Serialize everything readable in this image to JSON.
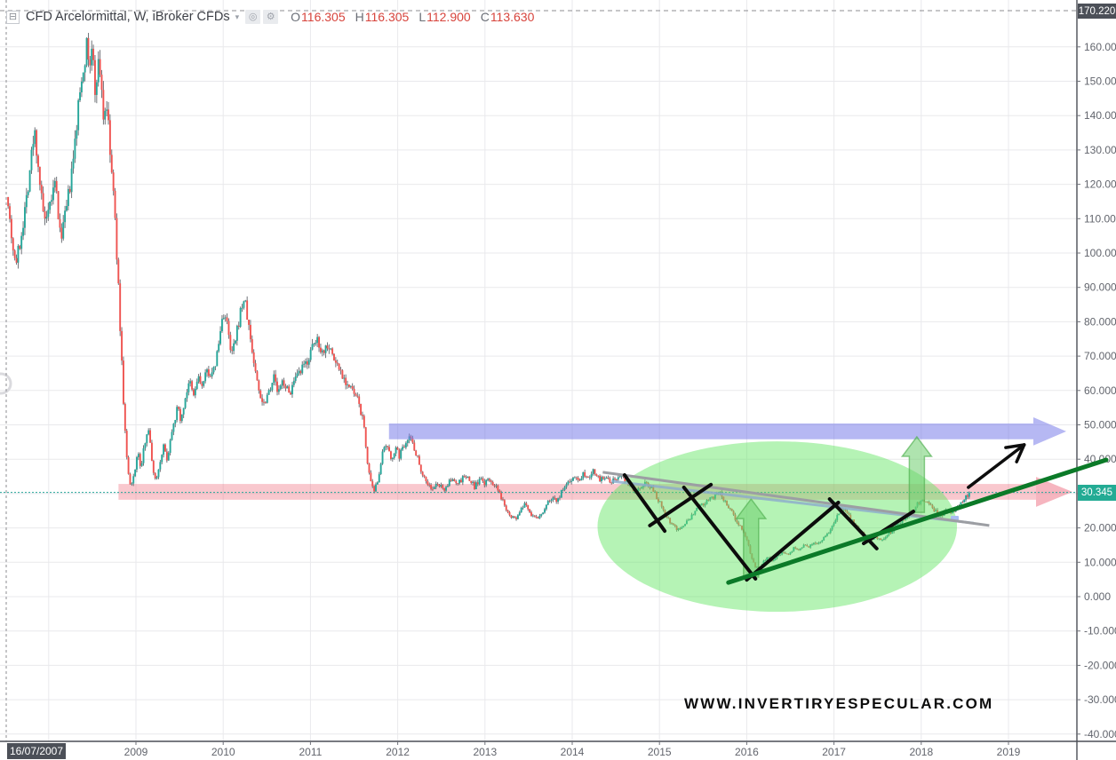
{
  "header": {
    "collapse_glyph": "⊟",
    "symbol_title": "CFD Arcelormittal, W, iBroker CFDs",
    "dropdown_caret": "▾",
    "circle_icon_glyph": "◎",
    "gear_icon_glyph": "⚙",
    "ohlc": {
      "open_label": "O",
      "open": "116.305",
      "high_label": "H",
      "high": "116.305",
      "low_label": "L",
      "low": "112.900",
      "close_label": "C",
      "close": "113.630"
    }
  },
  "crosshair": {
    "price_label": "170.220",
    "date_label": "16/07/2007"
  },
  "price_label": {
    "value": "30.345"
  },
  "watermark_text": "WWW.INVERTIRYESPECULAR.COM",
  "price_axis": {
    "ticks": [
      "160.000",
      "150.000",
      "140.000",
      "130.000",
      "120.000",
      "110.000",
      "100.000",
      "90.000",
      "80.000",
      "70.000",
      "60.000",
      "50.000",
      "40.000",
      "30.000",
      "20.000",
      "10.000",
      "0.000",
      "-10.000",
      "-20.000",
      "-30.000",
      "-40.000"
    ]
  },
  "time_axis": {
    "years": [
      "2009",
      "2010",
      "2011",
      "2012",
      "2013",
      "2014",
      "2015",
      "2016",
      "2017",
      "2018",
      "2019"
    ]
  },
  "colors": {
    "up_candle": "#26a69a",
    "down_candle": "#ef5350",
    "wick": "#61656b",
    "grid": "#e9e9ec",
    "axis_line": "#4b4e56",
    "axis_text": "#62656d",
    "current_price_line": "#26a69a",
    "price_label_bg": "#23ab94",
    "crosshair_label_bg": "#4c5058",
    "crosshair_line": "#8d8d92",
    "support_zone": "rgba(240,110,125,0.38)",
    "support_zone_head": "rgba(238,120,138,0.55)",
    "resistance_arrow": "rgba(122,126,233,0.55)",
    "ellipse": "rgba(100,230,100,0.48)",
    "up_arrow_fill": "rgba(110,205,110,0.55)",
    "up_arrow_stroke": "rgba(80,175,80,0.65)",
    "zigzag": "#0c0c0c",
    "gray_line": "#9c9ea3",
    "bluegray_line": "rgba(140,170,205,0.8)",
    "handle": "#a9bdf2",
    "green_trendline": "#0b7a28",
    "black_arrow": "#0d0d0d"
  },
  "chart_data": {
    "type": "candlestick",
    "symbol": "CFD Arcelormittal",
    "interval": "W",
    "broker": "iBroker CFDs",
    "first_bar": {
      "date": "16/07/2007",
      "open": 116.305,
      "high": 116.305,
      "low": 112.9,
      "close": 113.63
    },
    "current_price": 30.345,
    "y_axis": {
      "min": -40,
      "max": 170.22,
      "tick_step": 10
    },
    "x_axis": {
      "start_year": 2007.54,
      "end_year": 2019.6
    },
    "price_path_anchors": [
      [
        2007.54,
        113
      ],
      [
        2007.58,
        104
      ],
      [
        2007.62,
        97
      ],
      [
        2007.66,
        101
      ],
      [
        2007.7,
        108
      ],
      [
        2007.75,
        117
      ],
      [
        2007.8,
        128
      ],
      [
        2007.84,
        135
      ],
      [
        2007.88,
        126
      ],
      [
        2007.93,
        112
      ],
      [
        2007.98,
        108
      ],
      [
        2008.03,
        116
      ],
      [
        2008.08,
        120
      ],
      [
        2008.13,
        105
      ],
      [
        2008.18,
        109
      ],
      [
        2008.23,
        117
      ],
      [
        2008.28,
        126
      ],
      [
        2008.33,
        140
      ],
      [
        2008.38,
        152
      ],
      [
        2008.43,
        160
      ],
      [
        2008.47,
        155
      ],
      [
        2008.5,
        159
      ],
      [
        2008.53,
        147
      ],
      [
        2008.56,
        155
      ],
      [
        2008.6,
        152
      ],
      [
        2008.63,
        138
      ],
      [
        2008.66,
        145
      ],
      [
        2008.7,
        130
      ],
      [
        2008.74,
        118
      ],
      [
        2008.78,
        100
      ],
      [
        2008.82,
        78
      ],
      [
        2008.86,
        55
      ],
      [
        2008.9,
        38
      ],
      [
        2008.94,
        31
      ],
      [
        2008.98,
        36
      ],
      [
        2009.02,
        42
      ],
      [
        2009.06,
        37
      ],
      [
        2009.1,
        45
      ],
      [
        2009.14,
        50
      ],
      [
        2009.18,
        40
      ],
      [
        2009.22,
        34
      ],
      [
        2009.26,
        37
      ],
      [
        2009.31,
        44
      ],
      [
        2009.36,
        40
      ],
      [
        2009.42,
        50
      ],
      [
        2009.48,
        55
      ],
      [
        2009.52,
        51
      ],
      [
        2009.57,
        59
      ],
      [
        2009.62,
        62
      ],
      [
        2009.66,
        58
      ],
      [
        2009.71,
        64
      ],
      [
        2009.76,
        61
      ],
      [
        2009.82,
        66
      ],
      [
        2009.88,
        64
      ],
      [
        2009.94,
        72
      ],
      [
        2010.0,
        83
      ],
      [
        2010.04,
        80
      ],
      [
        2010.09,
        70
      ],
      [
        2010.14,
        74
      ],
      [
        2010.19,
        82
      ],
      [
        2010.24,
        87
      ],
      [
        2010.29,
        79
      ],
      [
        2010.34,
        70
      ],
      [
        2010.4,
        61
      ],
      [
        2010.46,
        56
      ],
      [
        2010.52,
        60
      ],
      [
        2010.58,
        64
      ],
      [
        2010.63,
        59
      ],
      [
        2010.69,
        63
      ],
      [
        2010.75,
        59
      ],
      [
        2010.81,
        62
      ],
      [
        2010.88,
        65
      ],
      [
        2010.95,
        68
      ],
      [
        2011.02,
        72
      ],
      [
        2011.08,
        75
      ],
      [
        2011.14,
        71
      ],
      [
        2011.2,
        74
      ],
      [
        2011.27,
        69
      ],
      [
        2011.34,
        66
      ],
      [
        2011.42,
        62
      ],
      [
        2011.5,
        59
      ],
      [
        2011.56,
        56
      ],
      [
        2011.61,
        50
      ],
      [
        2011.65,
        40
      ],
      [
        2011.69,
        33
      ],
      [
        2011.73,
        30
      ],
      [
        2011.77,
        34
      ],
      [
        2011.82,
        41
      ],
      [
        2011.87,
        44
      ],
      [
        2011.92,
        40
      ],
      [
        2011.97,
        43
      ],
      [
        2012.02,
        41
      ],
      [
        2012.07,
        44
      ],
      [
        2012.12,
        47
      ],
      [
        2012.17,
        45
      ],
      [
        2012.22,
        41
      ],
      [
        2012.28,
        36
      ],
      [
        2012.34,
        33
      ],
      [
        2012.4,
        31
      ],
      [
        2012.46,
        33
      ],
      [
        2012.52,
        31
      ],
      [
        2012.58,
        33
      ],
      [
        2012.64,
        34
      ],
      [
        2012.7,
        33
      ],
      [
        2012.76,
        35
      ],
      [
        2012.82,
        34
      ],
      [
        2012.88,
        32
      ],
      [
        2012.94,
        34
      ],
      [
        2013.0,
        33
      ],
      [
        2013.06,
        34
      ],
      [
        2013.12,
        32
      ],
      [
        2013.18,
        29
      ],
      [
        2013.24,
        26
      ],
      [
        2013.3,
        23.5
      ],
      [
        2013.35,
        22.5
      ],
      [
        2013.41,
        25
      ],
      [
        2013.47,
        27
      ],
      [
        2013.53,
        24
      ],
      [
        2013.59,
        22.5
      ],
      [
        2013.65,
        24
      ],
      [
        2013.71,
        27
      ],
      [
        2013.77,
        29
      ],
      [
        2013.83,
        28
      ],
      [
        2013.89,
        31
      ],
      [
        2013.95,
        33
      ],
      [
        2014.01,
        35
      ],
      [
        2014.07,
        34
      ],
      [
        2014.13,
        36
      ],
      [
        2014.19,
        35
      ],
      [
        2014.25,
        37
      ],
      [
        2014.31,
        34
      ],
      [
        2014.37,
        35
      ],
      [
        2014.43,
        33
      ],
      [
        2014.49,
        34
      ],
      [
        2014.55,
        35
      ],
      [
        2014.61,
        34
      ],
      [
        2014.67,
        32
      ],
      [
        2014.73,
        31
      ],
      [
        2014.79,
        32
      ],
      [
        2014.85,
        33
      ],
      [
        2014.91,
        32
      ],
      [
        2014.97,
        29
      ],
      [
        2015.03,
        26
      ],
      [
        2015.09,
        23
      ],
      [
        2015.15,
        21
      ],
      [
        2015.21,
        19.5
      ],
      [
        2015.27,
        20.5
      ],
      [
        2015.33,
        22
      ],
      [
        2015.39,
        24
      ],
      [
        2015.45,
        26
      ],
      [
        2015.51,
        27
      ],
      [
        2015.57,
        28
      ],
      [
        2015.63,
        29
      ],
      [
        2015.69,
        30
      ],
      [
        2015.74,
        28
      ],
      [
        2015.8,
        26
      ],
      [
        2015.86,
        23
      ],
      [
        2015.92,
        21
      ],
      [
        2015.98,
        18
      ],
      [
        2016.04,
        13
      ],
      [
        2016.09,
        9
      ],
      [
        2016.14,
        8
      ],
      [
        2016.19,
        10
      ],
      [
        2016.24,
        12
      ],
      [
        2016.29,
        10.5
      ],
      [
        2016.35,
        12
      ],
      [
        2016.41,
        13
      ],
      [
        2016.47,
        12
      ],
      [
        2016.53,
        14
      ],
      [
        2016.59,
        13.5
      ],
      [
        2016.65,
        15
      ],
      [
        2016.71,
        14.5
      ],
      [
        2016.77,
        16
      ],
      [
        2016.83,
        15.5
      ],
      [
        2016.89,
        17
      ],
      [
        2016.95,
        19
      ],
      [
        2017.01,
        22
      ],
      [
        2017.07,
        25
      ],
      [
        2017.12,
        26
      ],
      [
        2017.18,
        23
      ],
      [
        2017.24,
        21
      ],
      [
        2017.3,
        19
      ],
      [
        2017.36,
        17.5
      ],
      [
        2017.42,
        16.5
      ],
      [
        2017.48,
        17.5
      ],
      [
        2017.54,
        16.5
      ],
      [
        2017.6,
        18
      ],
      [
        2017.66,
        19
      ],
      [
        2017.72,
        21
      ],
      [
        2017.78,
        22
      ],
      [
        2017.84,
        23.5
      ],
      [
        2017.9,
        25
      ],
      [
        2017.96,
        27
      ],
      [
        2018.02,
        28.5
      ],
      [
        2018.07,
        27.5
      ],
      [
        2018.12,
        26
      ],
      [
        2018.17,
        25
      ],
      [
        2018.22,
        23.5
      ],
      [
        2018.27,
        24.5
      ],
      [
        2018.32,
        25.5
      ],
      [
        2018.37,
        24
      ],
      [
        2018.42,
        26
      ],
      [
        2018.47,
        28
      ],
      [
        2018.52,
        29.5
      ],
      [
        2018.56,
        30.345
      ]
    ],
    "annotations": {
      "support_zone": {
        "t_start": 2008.8,
        "price_top": 32.8,
        "price_bottom": 28.2,
        "arrow_head": true
      },
      "resistance_arrow": {
        "t_start": 2011.9,
        "price_top": 50.4,
        "price_bottom": 45.8
      },
      "ellipse": {
        "t_center": 2016.35,
        "price_center": 20.4,
        "t_radius": 2.06,
        "price_radius": 24.8
      },
      "up_arrow_1": {
        "t": 2016.05,
        "tip_price": 28.4,
        "base_price": 5.7
      },
      "up_arrow_2": {
        "t": 2017.95,
        "tip_price": 46.5,
        "base_price": 24.5
      },
      "zigzag_segments": [
        [
          2014.6,
          35.4,
          2015.06,
          19.1
        ],
        [
          2014.89,
          20.7,
          2015.59,
          32.6
        ],
        [
          2015.28,
          31.8,
          2016.1,
          5.2
        ],
        [
          2016.0,
          4.9,
          2017.05,
          27.4
        ],
        [
          2016.95,
          28.4,
          2017.49,
          14.0
        ],
        [
          2017.34,
          15.5,
          2017.91,
          24.8
        ]
      ],
      "gray_line": [
        2014.35,
        36.2,
        2018.78,
        20.7
      ],
      "bluegray_line": [
        2014.45,
        33.6,
        2018.6,
        21.4
      ],
      "green_trendline": [
        2015.79,
        4.1,
        2020.12,
        39.8
      ],
      "breakout_arrow": [
        2018.54,
        31.8,
        2019.18,
        44.2
      ]
    }
  }
}
